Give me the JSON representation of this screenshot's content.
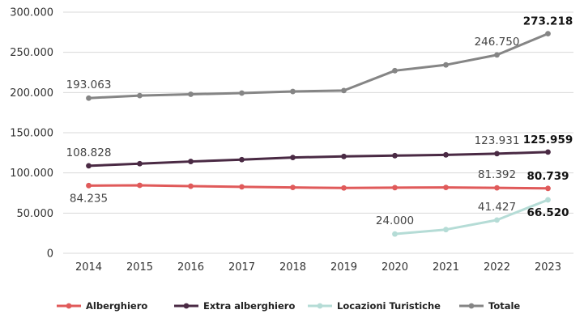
{
  "chart_data": {
    "type": "line",
    "title": "",
    "xlabel": "",
    "ylabel": "",
    "x": [
      "2014",
      "2015",
      "2016",
      "2017",
      "2018",
      "2019",
      "2020",
      "2021",
      "2022",
      "2023"
    ],
    "ylim": [
      0,
      300000
    ],
    "yticks": [
      0,
      50000,
      100000,
      150000,
      200000,
      250000,
      300000
    ],
    "ytick_labels": [
      "0",
      "50.000",
      "100.000",
      "150.000",
      "200.000",
      "250.000",
      "300.000"
    ],
    "grid": "horizontal",
    "legend_position": "bottom",
    "series": [
      {
        "name": "Alberghiero",
        "color": "#e05a5a",
        "values": [
          84235,
          84600,
          83500,
          82700,
          81900,
          81300,
          81700,
          81900,
          81392,
          80739
        ],
        "labels": [
          {
            "index": 0,
            "text": "84.235",
            "bold": false,
            "pos": "below"
          },
          {
            "index": 8,
            "text": "81.392",
            "bold": false,
            "pos": "above"
          },
          {
            "index": 9,
            "text": "80.739",
            "bold": true,
            "pos": "above"
          }
        ]
      },
      {
        "name": "Extra alberghiero",
        "color": "#4a2a44",
        "values": [
          108828,
          111500,
          114200,
          116500,
          119200,
          120500,
          121500,
          122500,
          123931,
          125959
        ],
        "labels": [
          {
            "index": 0,
            "text": "108.828",
            "bold": false,
            "pos": "above"
          },
          {
            "index": 8,
            "text": "123.931",
            "bold": false,
            "pos": "above"
          },
          {
            "index": 9,
            "text": "125.959",
            "bold": true,
            "pos": "above"
          }
        ]
      },
      {
        "name": "Locazioni Turistiche",
        "color": "#b5dcd6",
        "values": [
          null,
          null,
          null,
          null,
          null,
          null,
          24000,
          29500,
          41427,
          66520
        ],
        "labels": [
          {
            "index": 6,
            "text": "24.000",
            "bold": false,
            "pos": "above"
          },
          {
            "index": 8,
            "text": "41.427",
            "bold": false,
            "pos": "above"
          },
          {
            "index": 9,
            "text": "66.520",
            "bold": true,
            "pos": "below"
          }
        ]
      },
      {
        "name": "Totale",
        "color": "#858585",
        "values": [
          193063,
          196200,
          197800,
          199300,
          201300,
          202500,
          227200,
          234400,
          246750,
          273218
        ],
        "labels": [
          {
            "index": 0,
            "text": "193.063",
            "bold": false,
            "pos": "above"
          },
          {
            "index": 8,
            "text": "246.750",
            "bold": false,
            "pos": "above"
          },
          {
            "index": 9,
            "text": "273.218",
            "bold": true,
            "pos": "above"
          }
        ]
      }
    ]
  }
}
